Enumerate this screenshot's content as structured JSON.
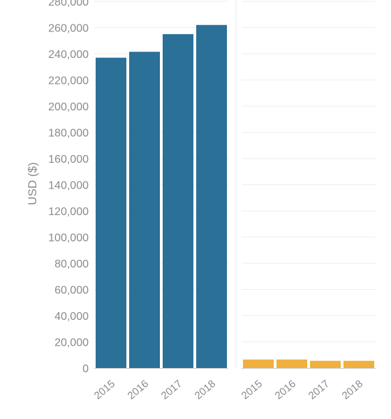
{
  "chart_data": {
    "type": "bar",
    "ylabel": "USD ($)",
    "ylim": [
      0,
      280000
    ],
    "y_ticks": [
      0,
      20000,
      40000,
      60000,
      80000,
      100000,
      120000,
      140000,
      160000,
      180000,
      200000,
      220000,
      240000,
      260000,
      280000
    ],
    "y_tick_labels": [
      "0",
      "20,000",
      "40,000",
      "60,000",
      "80,000",
      "100,000",
      "120,000",
      "140,000",
      "160,000",
      "180,000",
      "200,000",
      "220,000",
      "240,000",
      "260,000",
      "280,000"
    ],
    "categories": [
      "2015",
      "2016",
      "2017",
      "2018"
    ],
    "grid": true,
    "panels": [
      {
        "color": "#2a7097",
        "values": [
          237000,
          241500,
          255000,
          262000
        ]
      },
      {
        "color": "#f0b03f",
        "values": [
          6500,
          6500,
          5500,
          5500
        ]
      }
    ]
  }
}
